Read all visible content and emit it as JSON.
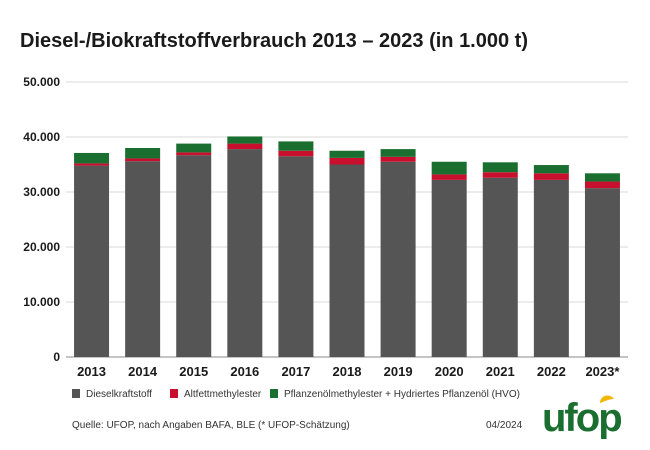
{
  "chart_data": {
    "type": "bar",
    "stacked": true,
    "title": "Diesel-/Biokraftstoffverbrauch 2013 – 2023 (in 1.000 t)",
    "categories": [
      "2013",
      "2014",
      "2015",
      "2016",
      "2017",
      "2018",
      "2019",
      "2020",
      "2021",
      "2022",
      "2023*"
    ],
    "series": [
      {
        "name": "Dieselkraftstoff",
        "color": "#555555",
        "values": [
          34800,
          35600,
          36700,
          37800,
          36500,
          35000,
          35500,
          32200,
          32600,
          32200,
          30700
        ]
      },
      {
        "name": "Altfettmethylester",
        "color": "#c8102e",
        "values": [
          400,
          500,
          500,
          1000,
          1000,
          1200,
          900,
          1000,
          1000,
          1200,
          1200
        ]
      },
      {
        "name": "Pflanzenölmethylester + Hydriertes Pflanzenöl (HVO)",
        "color": "#1a6e2f",
        "values": [
          1900,
          1900,
          1600,
          1300,
          1700,
          1300,
          1400,
          2300,
          1800,
          1500,
          1500
        ]
      }
    ],
    "yticks": [
      "0",
      "10.000",
      "20.000",
      "30.000",
      "40.000",
      "50.000"
    ],
    "ylim": [
      0,
      50000
    ],
    "grid": true,
    "legend_position": "bottom",
    "xlabel": "",
    "ylabel": ""
  },
  "footer": {
    "source": "Quelle: UFOP, nach Angaben BAFA, BLE (* UFOP-Schätzung)",
    "date": "04/2024"
  },
  "logo": {
    "text": "ufop",
    "colors": {
      "text": "#1a6e2f",
      "leaf": "#f2b705"
    }
  }
}
